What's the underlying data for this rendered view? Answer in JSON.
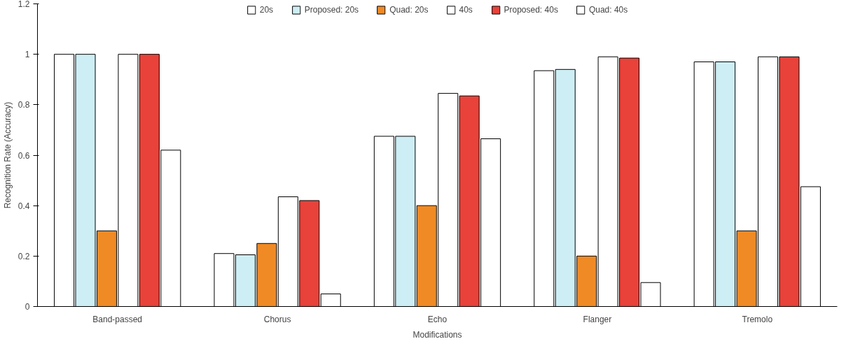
{
  "chart_data": {
    "type": "bar",
    "xlabel": "Modifications",
    "ylabel": "Recognition Rate (Accuracy)",
    "categories": [
      "Band-passed",
      "Chorus",
      "Echo",
      "Flanger",
      "Tremolo"
    ],
    "series": [
      {
        "name": "20s",
        "color": "#ffffff",
        "values": [
          1,
          0.21,
          0.675,
          0.935,
          0.97
        ]
      },
      {
        "name": "Proposed: 20s",
        "color": "#cdeef4",
        "values": [
          1,
          0.205,
          0.675,
          0.94,
          0.97
        ]
      },
      {
        "name": "Quad: 20s",
        "color": "#f08a24",
        "values": [
          0.3,
          0.25,
          0.4,
          0.2,
          0.3
        ]
      },
      {
        "name": "40s",
        "color": "#ffffff",
        "values": [
          1,
          0.435,
          0.845,
          0.99,
          0.99
        ]
      },
      {
        "name": "Proposed: 40s",
        "color": "#e8423a",
        "values": [
          1,
          0.42,
          0.835,
          0.985,
          0.99
        ]
      },
      {
        "name": "Quad: 40s",
        "color": "#ffffff",
        "values": [
          0.62,
          0.05,
          0.665,
          0.095,
          0.475
        ]
      }
    ],
    "ylim": [
      0,
      1.2
    ],
    "yticks": [
      0,
      0.2,
      0.4,
      0.6,
      0.8,
      1,
      1.2
    ],
    "grid": false,
    "legend": "top"
  }
}
